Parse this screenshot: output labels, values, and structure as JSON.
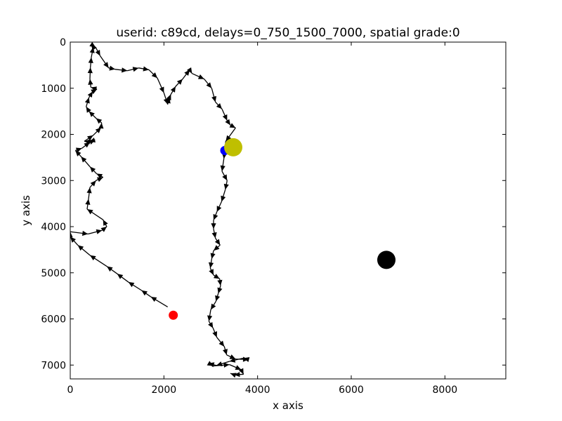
{
  "chart_data": {
    "type": "scatter",
    "title": "userid: c89cd, delays=0_750_1500_7000, spatial grade:0",
    "xlabel": "x axis",
    "ylabel": "y axis",
    "xlim": [
      0,
      9300
    ],
    "ylim": [
      7300,
      0
    ],
    "y_inverted": true,
    "grid": false,
    "xticks": [
      0,
      2000,
      4000,
      6000,
      8000
    ],
    "yticks": [
      0,
      1000,
      2000,
      3000,
      4000,
      5000,
      6000,
      7000
    ],
    "colors": {
      "path": "#000000",
      "start_marker": "#ff0000",
      "end_marker": "#0000ff",
      "large_yellow": "#bfbf00",
      "large_black": "#000000"
    },
    "markers": [
      {
        "name": "start",
        "x": 2200,
        "y": 5920,
        "color": "#ff0000",
        "size": "small"
      },
      {
        "name": "end",
        "x": 3300,
        "y": 2350,
        "color": "#0000ff",
        "size": "small"
      },
      {
        "name": "target-yellow",
        "x": 3480,
        "y": 2280,
        "color": "#bfbf00",
        "size": "large"
      },
      {
        "name": "target-black",
        "x": 6750,
        "y": 4720,
        "color": "#000000",
        "size": "large"
      }
    ],
    "path": [
      [
        2080,
        5740
      ],
      [
        1720,
        5520
      ],
      [
        1520,
        5380
      ],
      [
        1240,
        5200
      ],
      [
        1000,
        5020
      ],
      [
        780,
        4860
      ],
      [
        420,
        4620
      ],
      [
        160,
        4400
      ],
      [
        0,
        4220
      ],
      [
        0,
        4110
      ],
      [
        380,
        4160
      ],
      [
        680,
        4080
      ],
      [
        780,
        4000
      ],
      [
        700,
        3850
      ],
      [
        360,
        3620
      ],
      [
        390,
        3400
      ],
      [
        420,
        3150
      ],
      [
        550,
        3000
      ],
      [
        700,
        2930
      ],
      [
        560,
        2850
      ],
      [
        420,
        2700
      ],
      [
        230,
        2480
      ],
      [
        110,
        2350
      ],
      [
        250,
        2300
      ],
      [
        420,
        2170
      ],
      [
        530,
        2120
      ],
      [
        410,
        2160
      ],
      [
        300,
        2150
      ],
      [
        490,
        2020
      ],
      [
        660,
        1850
      ],
      [
        670,
        1750
      ],
      [
        550,
        1650
      ],
      [
        400,
        1500
      ],
      [
        340,
        1400
      ],
      [
        400,
        1200
      ],
      [
        480,
        1070
      ],
      [
        570,
        1020
      ],
      [
        440,
        980
      ],
      [
        420,
        800
      ],
      [
        430,
        550
      ],
      [
        450,
        330
      ],
      [
        490,
        110
      ],
      [
        450,
        50
      ],
      [
        540,
        110
      ],
      [
        640,
        300
      ],
      [
        820,
        560
      ],
      [
        960,
        590
      ],
      [
        1220,
        620
      ],
      [
        1460,
        560
      ],
      [
        1680,
        600
      ],
      [
        1860,
        780
      ],
      [
        2000,
        1100
      ],
      [
        2080,
        1350
      ],
      [
        2120,
        1200
      ],
      [
        2150,
        1130
      ],
      [
        2250,
        960
      ],
      [
        2400,
        800
      ],
      [
        2550,
        600
      ],
      [
        2600,
        680
      ],
      [
        2860,
        800
      ],
      [
        3020,
        1000
      ],
      [
        3100,
        1300
      ],
      [
        3240,
        1450
      ],
      [
        3350,
        1700
      ],
      [
        3420,
        1800
      ],
      [
        3530,
        1860
      ],
      [
        3320,
        2150
      ],
      [
        3280,
        2530
      ],
      [
        3240,
        2800
      ],
      [
        3350,
        3000
      ],
      [
        3310,
        3200
      ],
      [
        3230,
        3460
      ],
      [
        3130,
        3680
      ],
      [
        3060,
        3860
      ],
      [
        3060,
        4050
      ],
      [
        3100,
        4250
      ],
      [
        3200,
        4400
      ],
      [
        3060,
        4520
      ],
      [
        3020,
        4700
      ],
      [
        2990,
        4900
      ],
      [
        3060,
        5050
      ],
      [
        3190,
        5130
      ],
      [
        3210,
        5280
      ],
      [
        3160,
        5450
      ],
      [
        3110,
        5620
      ],
      [
        3000,
        5800
      ],
      [
        2960,
        6050
      ],
      [
        3050,
        6200
      ],
      [
        3130,
        6400
      ],
      [
        3290,
        6600
      ],
      [
        3340,
        6780
      ],
      [
        3530,
        6870
      ],
      [
        3810,
        6880
      ],
      [
        3700,
        6850
      ],
      [
        3400,
        6920
      ],
      [
        3120,
        7010
      ],
      [
        2950,
        6960
      ],
      [
        3050,
        7020
      ],
      [
        3400,
        6990
      ],
      [
        3650,
        7100
      ],
      [
        3700,
        7200
      ],
      [
        3500,
        7210
      ],
      [
        3420,
        7180
      ]
    ]
  }
}
